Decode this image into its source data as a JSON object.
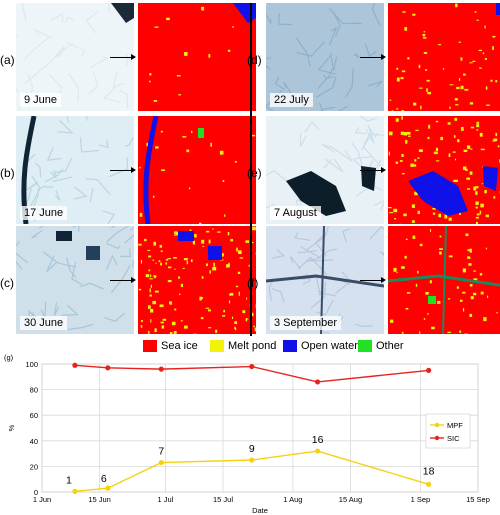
{
  "panels": [
    {
      "label": "(a)",
      "date": "9 June"
    },
    {
      "label": "(b)",
      "date": "17 June"
    },
    {
      "label": "(c)",
      "date": "30 June"
    },
    {
      "label": "(d)",
      "date": "22 July"
    },
    {
      "label": "(e)",
      "date": "7 August"
    },
    {
      "label": "(f)",
      "date": "3 September"
    }
  ],
  "legend": {
    "items": [
      {
        "label": "Sea ice",
        "color": "#ff0000"
      },
      {
        "label": "Melt pond",
        "color": "#f2f20a"
      },
      {
        "label": "Open water",
        "color": "#1010e8"
      },
      {
        "label": "Other",
        "color": "#22e022"
      }
    ]
  },
  "chart_data": {
    "panel_label": "(g)",
    "type": "line",
    "xlabel": "Date",
    "ylabel": "%",
    "ylim": [
      0,
      100
    ],
    "yticks": [
      0,
      20,
      40,
      60,
      80,
      100
    ],
    "xtick_labels": [
      "1 Jun",
      "15 Jun",
      "1 Jul",
      "15 Jul",
      "1 Aug",
      "15 Aug",
      "1 Sep",
      "15 Sep"
    ],
    "xlim": [
      "2018-06-01",
      "2018-09-15"
    ],
    "grid": true,
    "legend_position": "right",
    "series": [
      {
        "name": "MPF",
        "color": "#f5d20f",
        "x": [
          "2018-06-09",
          "2018-06-17",
          "2018-06-30",
          "2018-07-22",
          "2018-08-07",
          "2018-09-03"
        ],
        "values": [
          0.5,
          3,
          23,
          25,
          32,
          6
        ]
      },
      {
        "name": "SIC",
        "color": "#e8231d",
        "x": [
          "2018-06-09",
          "2018-06-17",
          "2018-06-30",
          "2018-07-22",
          "2018-08-07",
          "2018-09-03"
        ],
        "values": [
          99,
          97,
          96,
          98,
          86,
          95
        ]
      }
    ],
    "point_labels": [
      "1",
      "6",
      "7",
      "9",
      "16",
      "18"
    ]
  }
}
